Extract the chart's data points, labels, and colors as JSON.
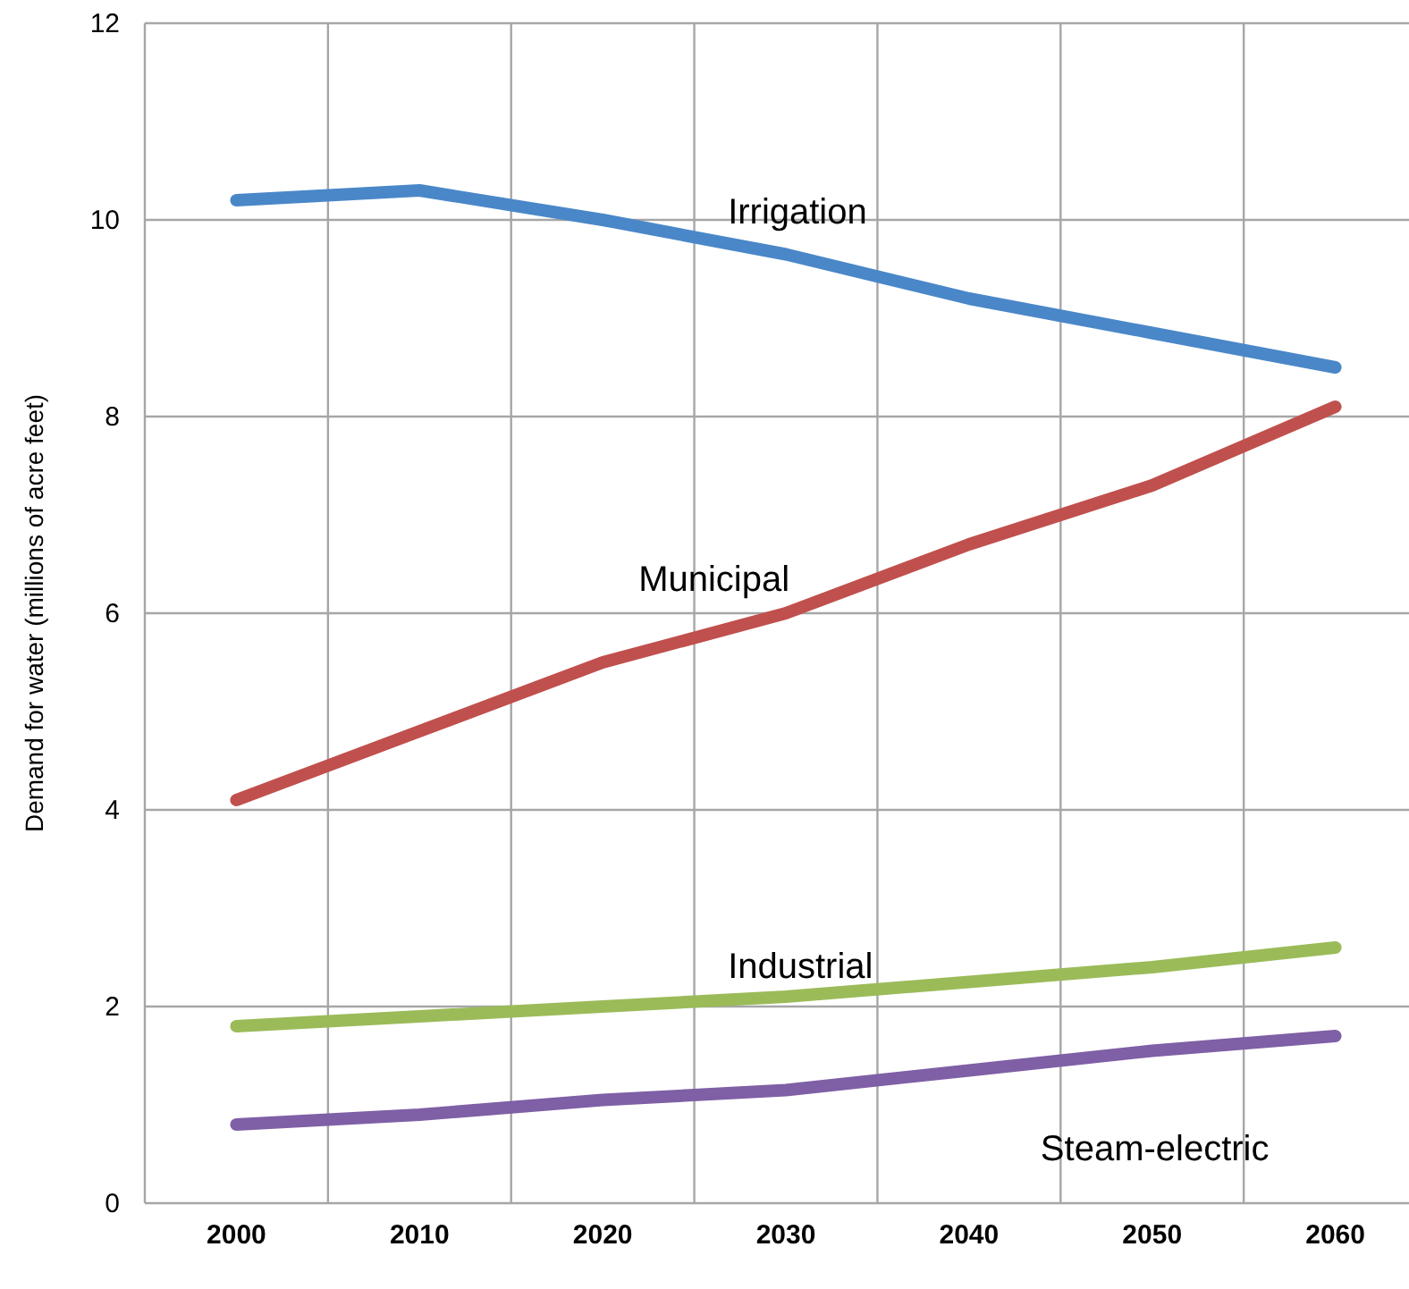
{
  "chart_data": {
    "type": "line",
    "ylabel": "Demand for water (millions of acre feet)",
    "categories": [
      "2000",
      "2010",
      "2020",
      "2030",
      "2040",
      "2050",
      "2060"
    ],
    "ylim": [
      0,
      12
    ],
    "yticks": [
      0,
      2,
      4,
      6,
      8,
      10,
      12
    ],
    "grid": true,
    "legend": false,
    "marker": "none",
    "line_style": "solid",
    "series": [
      {
        "name": "Irrigation",
        "color": "#4a87c8",
        "values": [
          10.2,
          10.3,
          10.0,
          9.65,
          9.2,
          8.85,
          8.5
        ]
      },
      {
        "name": "Municipal",
        "color": "#c0504d",
        "values": [
          4.1,
          4.8,
          5.5,
          6.0,
          6.7,
          7.3,
          8.1
        ]
      },
      {
        "name": "Industrial",
        "color": "#9bbb59",
        "values": [
          1.8,
          1.9,
          2.0,
          2.1,
          2.25,
          2.4,
          2.6
        ]
      },
      {
        "name": "Steam-electric",
        "color": "#7f5fa5",
        "values": [
          0.8,
          0.9,
          1.05,
          1.15,
          1.35,
          1.55,
          1.7
        ]
      }
    ]
  }
}
